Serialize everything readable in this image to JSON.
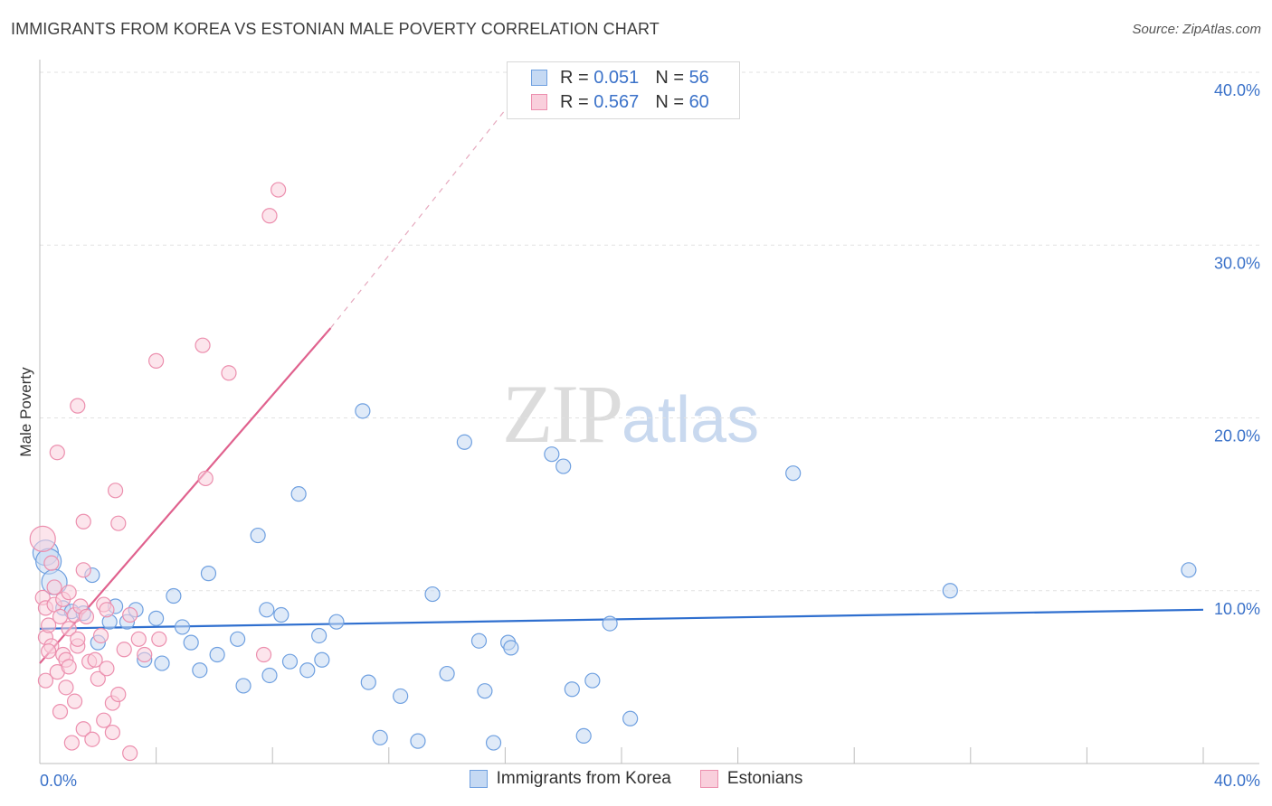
{
  "title": "IMMIGRANTS FROM KOREA VS ESTONIAN MALE POVERTY CORRELATION CHART",
  "source": "Source: ZipAtlas.com",
  "watermark": {
    "zip": "ZIP",
    "atlas": "atlas"
  },
  "legend_top": [
    {
      "r_label": "R =",
      "r_value": "0.051",
      "n_label": "N =",
      "n_value": "56",
      "color": "#6fa0e0",
      "fill": "#c5d9f3"
    },
    {
      "r_label": "R =",
      "r_value": "0.567",
      "n_label": "N =",
      "n_value": "60",
      "color": "#ec8fae",
      "fill": "#f9cfdc"
    }
  ],
  "chart_data": {
    "type": "scatter",
    "title": "IMMIGRANTS FROM KOREA VS ESTONIAN MALE POVERTY CORRELATION CHART",
    "xlabel": "",
    "ylabel": "Male Poverty",
    "xlim": [
      0,
      40
    ],
    "ylim": [
      0,
      40
    ],
    "x_tick_labels": [
      "0.0%",
      "40.0%"
    ],
    "y_ticks": [
      10,
      20,
      30,
      40
    ],
    "y_tick_labels": [
      "10.0%",
      "20.0%",
      "30.0%",
      "40.0%"
    ],
    "grid": true,
    "legend_position": "top-center",
    "series": [
      {
        "name": "Immigrants from Korea",
        "color": "#6fa0e0",
        "fill": "#c5d9f3",
        "trend": {
          "x": [
            0,
            40
          ],
          "y": [
            7.8,
            8.9
          ],
          "style": "solid",
          "color": "#2f6fcf"
        },
        "points": [
          [
            0.2,
            12.2
          ],
          [
            0.3,
            11.7
          ],
          [
            0.5,
            10.5
          ],
          [
            0.8,
            9.0
          ],
          [
            1.1,
            8.8
          ],
          [
            1.5,
            8.7
          ],
          [
            1.8,
            10.9
          ],
          [
            2.0,
            7.0
          ],
          [
            2.4,
            8.2
          ],
          [
            2.6,
            9.1
          ],
          [
            3.0,
            8.2
          ],
          [
            3.3,
            8.9
          ],
          [
            3.6,
            6.0
          ],
          [
            4.0,
            8.4
          ],
          [
            4.2,
            5.8
          ],
          [
            4.6,
            9.7
          ],
          [
            4.9,
            7.9
          ],
          [
            5.2,
            7.0
          ],
          [
            5.5,
            5.4
          ],
          [
            5.8,
            11.0
          ],
          [
            6.1,
            6.3
          ],
          [
            6.8,
            7.2
          ],
          [
            7.0,
            4.5
          ],
          [
            7.5,
            13.2
          ],
          [
            7.8,
            8.9
          ],
          [
            7.9,
            5.1
          ],
          [
            8.3,
            8.6
          ],
          [
            8.6,
            5.9
          ],
          [
            8.9,
            15.6
          ],
          [
            9.2,
            5.4
          ],
          [
            9.6,
            7.4
          ],
          [
            9.7,
            6.0
          ],
          [
            10.2,
            8.2
          ],
          [
            11.1,
            20.4
          ],
          [
            11.3,
            4.7
          ],
          [
            11.7,
            1.5
          ],
          [
            12.4,
            3.9
          ],
          [
            13.0,
            1.3
          ],
          [
            13.5,
            9.8
          ],
          [
            14.0,
            5.2
          ],
          [
            14.6,
            18.6
          ],
          [
            15.1,
            7.1
          ],
          [
            15.3,
            4.2
          ],
          [
            15.6,
            1.2
          ],
          [
            16.1,
            7.0
          ],
          [
            16.2,
            6.7
          ],
          [
            17.6,
            17.9
          ],
          [
            18.0,
            17.2
          ],
          [
            18.3,
            4.3
          ],
          [
            18.7,
            1.6
          ],
          [
            19.0,
            4.8
          ],
          [
            19.6,
            8.1
          ],
          [
            20.3,
            2.6
          ],
          [
            25.9,
            16.8
          ],
          [
            31.3,
            10.0
          ],
          [
            39.5,
            11.2
          ]
        ]
      },
      {
        "name": "Estonians",
        "color": "#ec8fae",
        "fill": "#f9cfdc",
        "trend": {
          "x": [
            0,
            10
          ],
          "y": [
            5.8,
            25.2
          ],
          "style": "solid",
          "color": "#e0628e",
          "extension": {
            "x": [
              10,
              16.8
            ],
            "y": [
              25.2,
              39.5
            ],
            "style": "dashed"
          }
        },
        "points": [
          [
            0.1,
            13.0
          ],
          [
            0.1,
            9.6
          ],
          [
            0.2,
            9.0
          ],
          [
            0.2,
            7.3
          ],
          [
            0.3,
            8.0
          ],
          [
            0.4,
            11.6
          ],
          [
            0.4,
            6.8
          ],
          [
            0.5,
            9.2
          ],
          [
            0.6,
            18.0
          ],
          [
            0.6,
            5.3
          ],
          [
            0.7,
            8.5
          ],
          [
            0.8,
            9.5
          ],
          [
            0.8,
            6.3
          ],
          [
            0.9,
            6.0
          ],
          [
            0.9,
            4.4
          ],
          [
            1.0,
            7.8
          ],
          [
            1.0,
            5.6
          ],
          [
            1.0,
            9.9
          ],
          [
            1.1,
            1.2
          ],
          [
            1.2,
            8.6
          ],
          [
            1.3,
            6.8
          ],
          [
            1.3,
            7.2
          ],
          [
            1.4,
            9.1
          ],
          [
            1.5,
            2.0
          ],
          [
            1.5,
            14.0
          ],
          [
            1.5,
            11.2
          ],
          [
            1.6,
            8.5
          ],
          [
            1.7,
            5.9
          ],
          [
            1.8,
            1.4
          ],
          [
            2.0,
            4.9
          ],
          [
            2.1,
            7.4
          ],
          [
            2.2,
            9.2
          ],
          [
            2.2,
            2.5
          ],
          [
            2.3,
            5.5
          ],
          [
            2.3,
            8.9
          ],
          [
            2.5,
            1.8
          ],
          [
            2.5,
            3.5
          ],
          [
            2.6,
            15.8
          ],
          [
            2.7,
            13.9
          ],
          [
            2.9,
            6.6
          ],
          [
            3.1,
            8.6
          ],
          [
            3.1,
            0.6
          ],
          [
            3.4,
            7.2
          ],
          [
            3.6,
            6.3
          ],
          [
            4.0,
            23.3
          ],
          [
            4.1,
            7.2
          ],
          [
            5.6,
            24.2
          ],
          [
            5.7,
            16.5
          ],
          [
            6.5,
            22.6
          ],
          [
            7.7,
            6.3
          ],
          [
            7.9,
            31.7
          ],
          [
            8.2,
            33.2
          ],
          [
            1.3,
            20.7
          ],
          [
            0.5,
            10.2
          ],
          [
            0.3,
            6.5
          ],
          [
            1.9,
            6.0
          ],
          [
            2.7,
            4.0
          ],
          [
            0.7,
            3.0
          ],
          [
            0.2,
            4.8
          ],
          [
            1.2,
            3.6
          ]
        ]
      }
    ]
  },
  "legend_bottom": [
    {
      "label": "Immigrants from Korea",
      "color": "#6fa0e0",
      "fill": "#c5d9f3"
    },
    {
      "label": "Estonians",
      "color": "#ec8fae",
      "fill": "#f9cfdc"
    }
  ]
}
